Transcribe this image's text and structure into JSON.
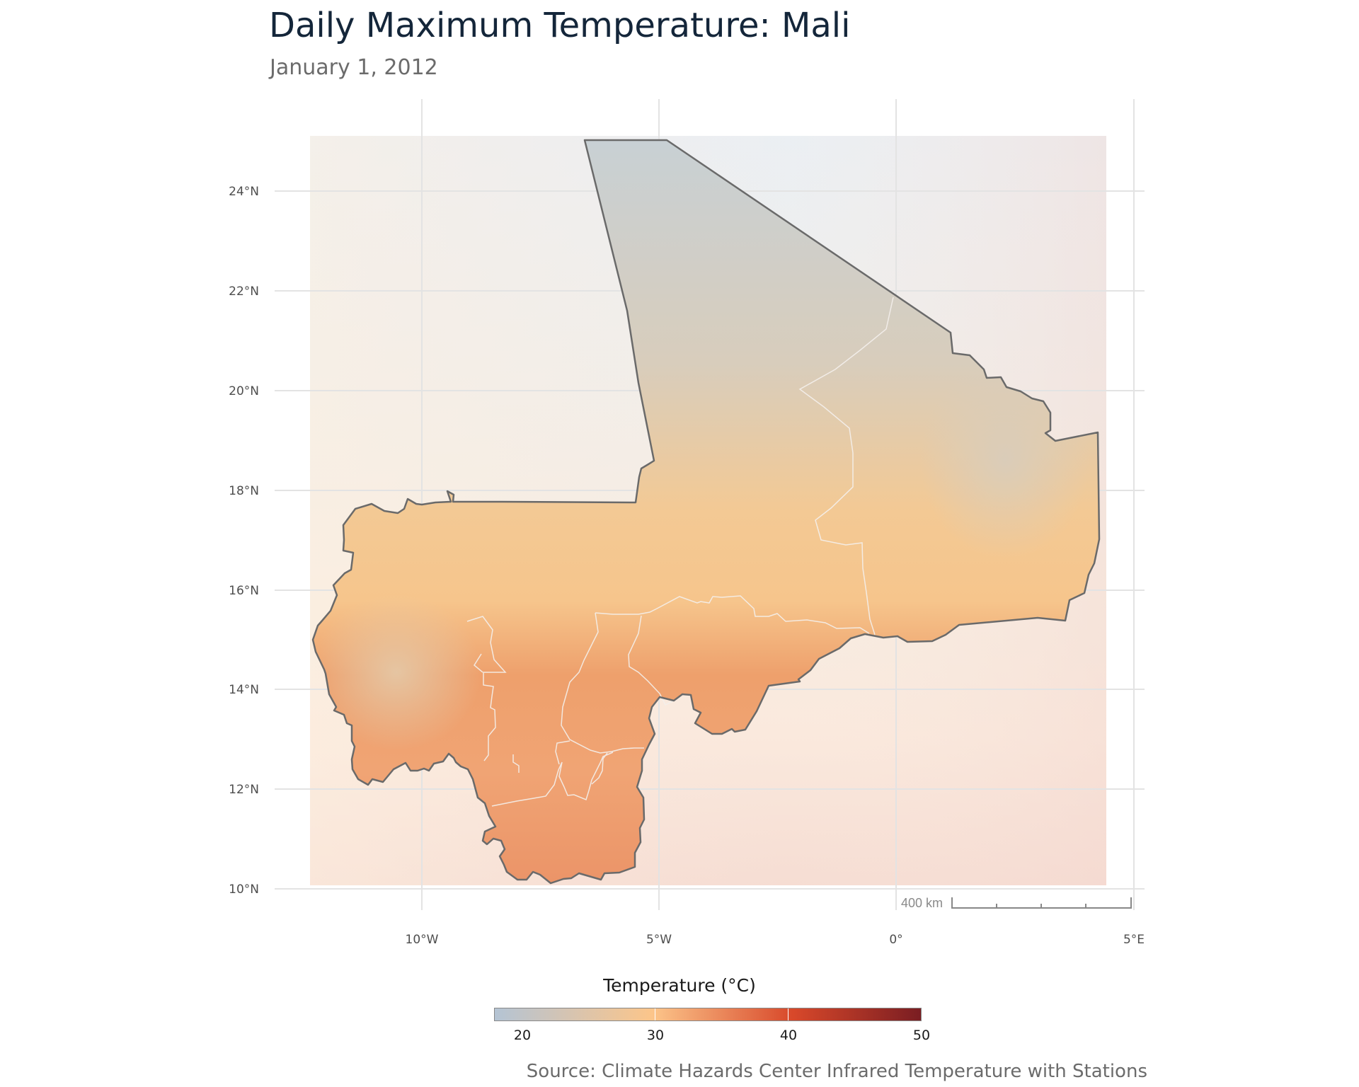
{
  "title": "Daily Maximum Temperature: Mali",
  "subtitle": "January 1, 2012",
  "source": "Source: Climate Hazards Center Infrared Temperature with Stations",
  "map": {
    "country": "Mali",
    "lat_ticks": [
      "24°N",
      "22°N",
      "20°N",
      "18°N",
      "16°N",
      "14°N",
      "12°N",
      "10°N"
    ],
    "lon_ticks": [
      "10°W",
      "5°W",
      "0°",
      "5°E"
    ],
    "scale_bar_label": "400 km"
  },
  "legend": {
    "title": "Temperature (°C)",
    "labels": [
      "20",
      "30",
      "40",
      "50"
    ],
    "colors": [
      "#b4c4d4",
      "#fcc58a",
      "#d8482a",
      "#7a1d22"
    ]
  },
  "colors": {
    "border": "#6a6a6a",
    "region_lines": "#eeeeee",
    "grid": "#e6e6e6",
    "title": "#14263a"
  }
}
